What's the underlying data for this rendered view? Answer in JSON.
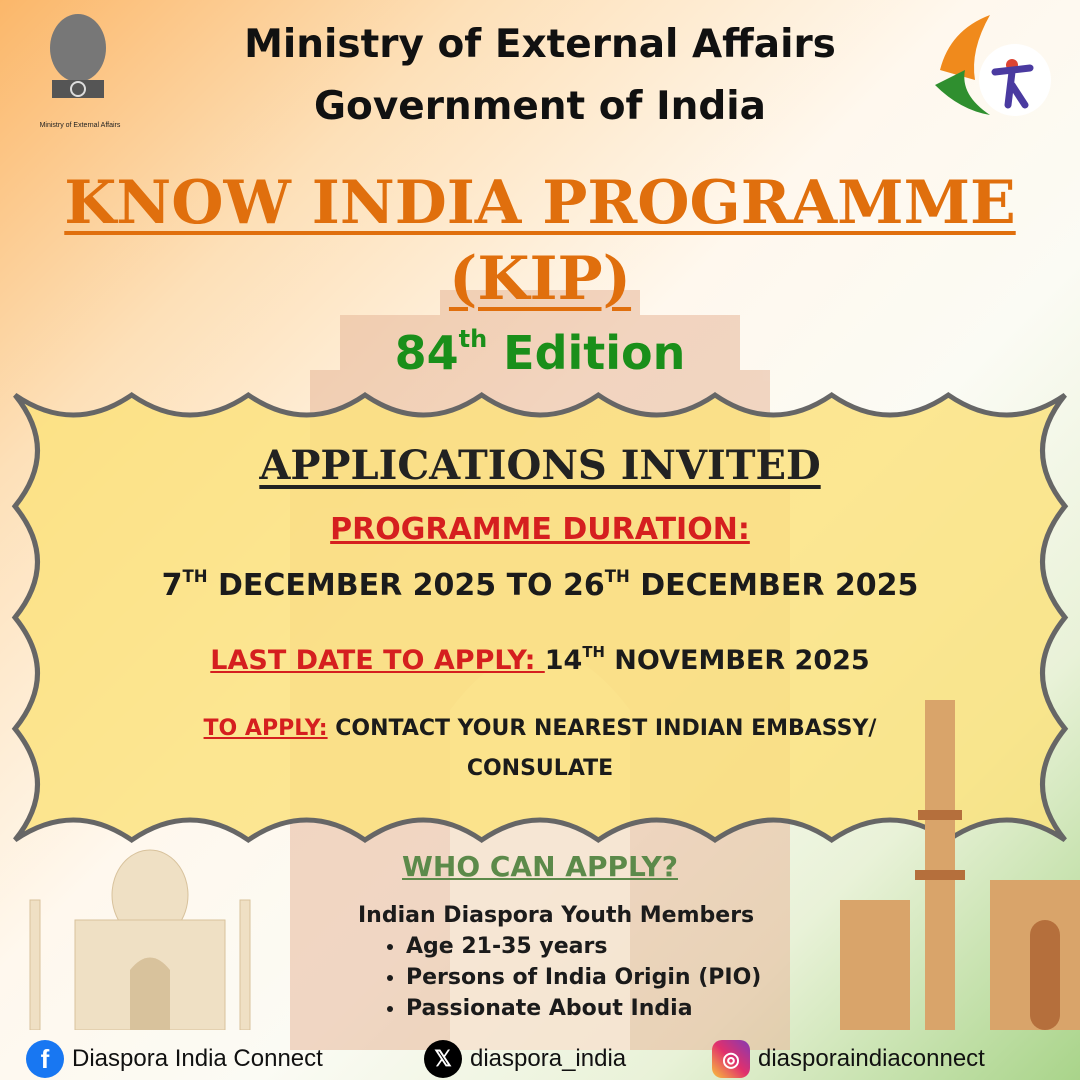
{
  "header": {
    "line1": "Ministry of External Affairs",
    "line2": "Government of India",
    "emblem_caption": "Ministry of External Affairs"
  },
  "title": {
    "line1": " KNOW INDIA PROGRAMME ",
    "line2": "(KIP)",
    "edition_number": "84",
    "edition_suffix": "th",
    "edition_word": " Edition"
  },
  "banner": {
    "heading": "APPLICATIONS INVITED",
    "duration_label": "PROGRAMME DURATION: ",
    "duration": {
      "d1": "7",
      "s1": "TH",
      "m1": " DECEMBER 2025 TO 26",
      "s2": "TH",
      "m2": " DECEMBER 2025"
    },
    "last_date_label": "LAST DATE TO APPLY: ",
    "last_date": {
      "d": " 14",
      "s": "TH",
      "m": " NOVEMBER 2025"
    },
    "apply_label": "TO APPLY:",
    "apply_text": " CONTACT YOUR NEAREST INDIAN EMBASSY/",
    "apply_text2": "CONSULATE"
  },
  "eligibility": {
    "heading": "WHO CAN APPLY?",
    "intro": "Indian Diaspora Youth Members",
    "items": [
      "Age 21-35 years",
      "Persons of India Origin (PIO)",
      "Passionate About India"
    ]
  },
  "footer": {
    "facebook": "Diaspora India Connect",
    "x": "diaspora_india",
    "instagram": "diasporaindiaconnect"
  },
  "colors": {
    "orange": "#e06f0d",
    "green": "#1a8f1a",
    "red": "#d51f1f",
    "banner": "#fbe27c"
  }
}
